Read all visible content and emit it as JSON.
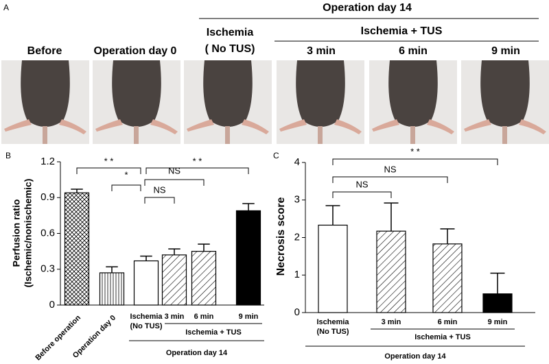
{
  "panel_a": {
    "label": "A",
    "header": "Operation  day 14",
    "subheader": "Ischemia + TUS",
    "columns": [
      "Before",
      "Operation  day 0",
      "Ischemia\n( No TUS)",
      "3 min",
      "6 min",
      "9 min"
    ]
  },
  "chart_data": [
    {
      "type": "bar",
      "panel": "B",
      "ylabel": [
        "Perfusion ratio",
        "(Ischemic/nonischemic)"
      ],
      "categories": [
        "Before operation",
        "Operation day 0",
        "Ischemia\n(No TUS)",
        "3 min",
        "6 min",
        "9 min"
      ],
      "values": [
        0.94,
        0.27,
        0.37,
        0.42,
        0.45,
        0.79
      ],
      "errors": [
        0.03,
        0.05,
        0.04,
        0.05,
        0.06,
        0.06
      ],
      "ylim": [
        0,
        1.2
      ],
      "yticks": [
        0,
        0.3,
        0.6,
        0.9,
        1.2
      ],
      "brackets": [
        "* *",
        "*",
        "NS",
        "NS",
        "* *"
      ],
      "groups": [
        "Ischemia + TUS",
        "Operation  day 14"
      ]
    },
    {
      "type": "bar",
      "panel": "C",
      "ylabel": [
        "Necrosis score"
      ],
      "categories": [
        "Ischemia\n(No TUS)",
        "3 min",
        "6 min",
        "9 min"
      ],
      "values": [
        2.33,
        2.17,
        1.83,
        0.5
      ],
      "errors": [
        0.52,
        0.75,
        0.4,
        0.55
      ],
      "ylim": [
        0,
        4
      ],
      "yticks": [
        0,
        1,
        2,
        3,
        4
      ],
      "brackets": [
        "* *",
        "NS",
        "NS"
      ],
      "groups": [
        "Ischemia + TUS",
        "Operation  day 14"
      ]
    }
  ]
}
